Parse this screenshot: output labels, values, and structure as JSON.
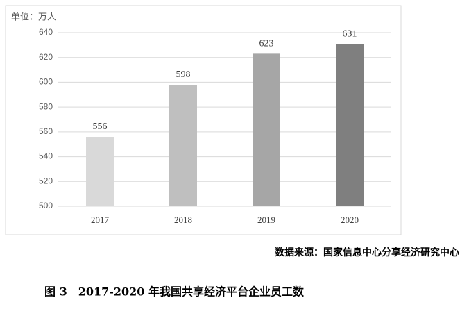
{
  "chart_data": {
    "type": "bar",
    "unit_label": "单位：万人",
    "categories": [
      "2017",
      "2018",
      "2019",
      "2020"
    ],
    "values": [
      556,
      598,
      623,
      631
    ],
    "colors": [
      "#d9d9d9",
      "#bfbfbf",
      "#a6a6a6",
      "#7f7f7f"
    ],
    "ylim": [
      500,
      640
    ],
    "yticks": [
      500,
      520,
      540,
      560,
      580,
      600,
      620,
      640
    ],
    "grid": true,
    "source": "数据来源：国家信息中心分享经济研究中心",
    "caption": "图 3　2017-2020 年我国共享经济平台企业员工数"
  }
}
